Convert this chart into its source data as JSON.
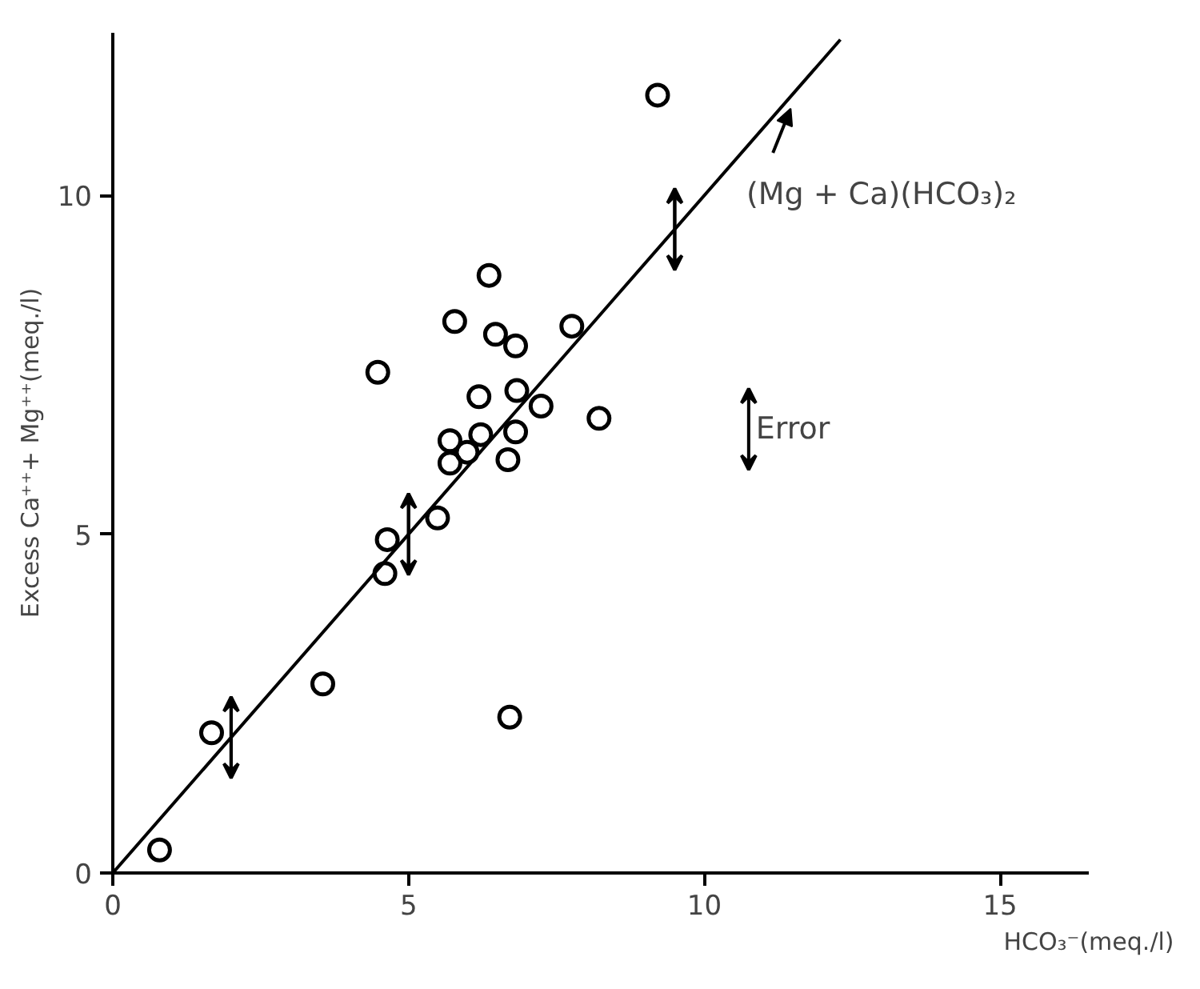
{
  "chart_data": {
    "type": "scatter",
    "xlabel": "HCO₃⁻(meq./l)",
    "ylabel": "Excess Ca⁺⁺+ Mg⁺⁺(meq./l)",
    "xlim": [
      0,
      16.5
    ],
    "ylim": [
      0,
      12.4
    ],
    "xticks": [
      0,
      5,
      10,
      15
    ],
    "yticks": [
      0,
      5,
      10
    ],
    "grid": false,
    "marker": "circle",
    "series": [
      {
        "color": "#000000",
        "x": [
          0.79,
          1.67,
          3.55,
          4.48,
          4.64,
          4.6,
          5.49,
          5.7,
          5.7,
          5.78,
          5.99,
          6.19,
          6.22,
          6.36,
          6.47,
          6.68,
          6.81,
          6.83,
          6.81,
          7.24,
          6.71,
          7.76,
          8.22,
          9.21
        ],
        "values": [
          0.34,
          2.07,
          2.79,
          7.39,
          4.92,
          4.42,
          5.24,
          6.38,
          6.05,
          8.14,
          6.21,
          7.03,
          6.47,
          8.82,
          7.95,
          6.1,
          7.78,
          7.12,
          6.51,
          6.89,
          2.3,
          8.07,
          6.71,
          11.48
        ]
      },
      {
        "type": "line",
        "color": "#000000",
        "line_style": "solid",
        "marker": "none",
        "x": [
          0,
          2,
          5,
          9.5,
          12.3
        ],
        "values": [
          0,
          2,
          5,
          9.5,
          12.3
        ],
        "errors": [
          null,
          0.6,
          0.6,
          0.6,
          null
        ]
      }
    ],
    "annotations": [
      {
        "text": "(Mg + Ca)(HCO₃)₂",
        "x": 11.46,
        "y": 11.28
      },
      "Error"
    ]
  }
}
